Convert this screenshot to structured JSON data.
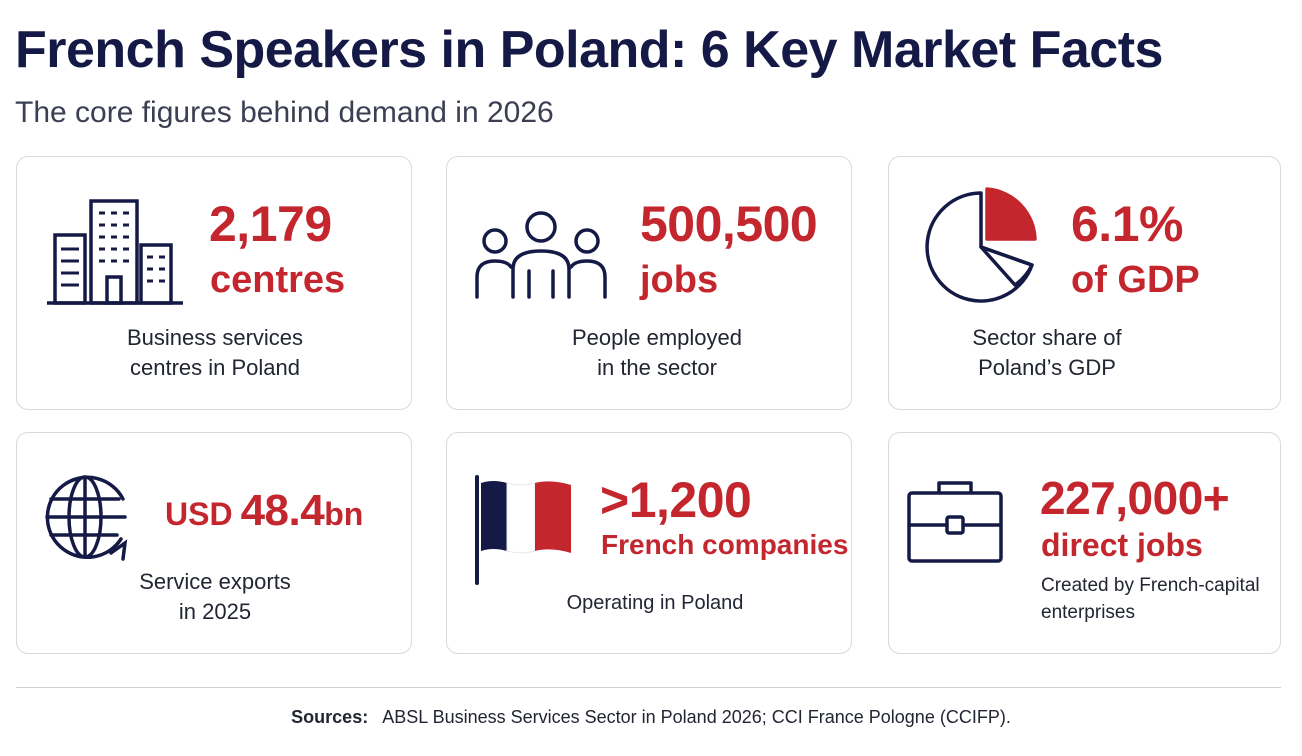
{
  "title": "French Speakers in Poland: 6 Key Market Facts",
  "subtitle": "The core figures behind demand in 2026",
  "colors": {
    "accent": "#c4262e",
    "navy": "#141a45",
    "border": "#d9d9de"
  },
  "cards": [
    {
      "icon": "office-buildings-icon",
      "value": "2,179",
      "unit": "centres",
      "desc_line1": "Business services",
      "desc_line2": "centres in Poland"
    },
    {
      "icon": "people-group-icon",
      "value": "500,500",
      "unit": "jobs",
      "desc_line1": "People employed",
      "desc_line2": "in the sector"
    },
    {
      "icon": "pie-chart-icon",
      "value": "6.1%",
      "unit": "of GDP",
      "desc_line1": "Sector share of",
      "desc_line2": "Poland’s GDP"
    },
    {
      "icon": "globe-arrow-icon",
      "prefix": "USD",
      "value": "48.4",
      "suffix": "bn",
      "desc_line1": "Service exports",
      "desc_line2": "in 2025"
    },
    {
      "icon": "french-flag-icon",
      "value": ">1,200",
      "unit": "French companies",
      "desc_line1": "Operating in Poland"
    },
    {
      "icon": "briefcase-icon",
      "value": "227,000+",
      "unit": "direct jobs",
      "desc_line1": "Created by French-capital",
      "desc_line2": "enterprises"
    }
  ],
  "sources": {
    "label": "Sources:",
    "text": "ABSL Business Services Sector in Poland 2026; CCI France Pologne (CCIFP)."
  }
}
